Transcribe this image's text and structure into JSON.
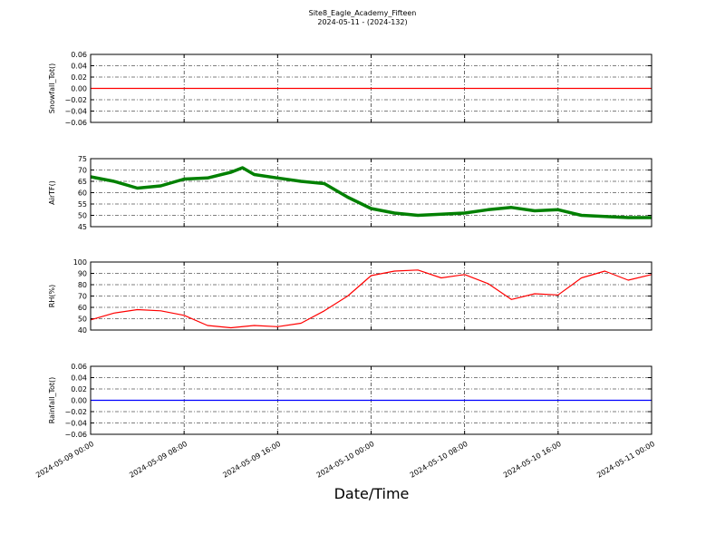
{
  "chart_data": [
    {
      "type": "line",
      "title": "Site8_Eagle_Academy_Fifteen",
      "subtitle": "2024-05-11 - (2024-132)",
      "y_label": "Snowfall_Tot()",
      "x": [
        "2024-05-09 00:00",
        "2024-05-11 00:00"
      ],
      "values": [
        0,
        0
      ],
      "color": "#ff0000",
      "xlim": [
        "2024-05-09 00:00",
        "2024-05-11 00:00"
      ],
      "ylim": [
        -0.06,
        0.06
      ],
      "yticks": [
        {
          "value": -0.06,
          "label": "−0.06"
        },
        {
          "value": -0.04,
          "label": "−0.04"
        },
        {
          "value": -0.02,
          "label": "−0.02"
        },
        {
          "value": 0,
          "label": "0.00"
        },
        {
          "value": 0.02,
          "label": "0.02"
        },
        {
          "value": 0.04,
          "label": "0.04"
        },
        {
          "value": 0.06,
          "label": "0.06"
        }
      ],
      "grid": true
    },
    {
      "type": "line",
      "y_label": "AirTF()",
      "x": [
        "2024-05-09 00:00",
        "2024-05-09 02:00",
        "2024-05-09 04:00",
        "2024-05-09 06:00",
        "2024-05-09 08:00",
        "2024-05-09 10:00",
        "2024-05-09 12:00",
        "2024-05-09 13:00",
        "2024-05-09 14:00",
        "2024-05-09 16:00",
        "2024-05-09 18:00",
        "2024-05-09 20:00",
        "2024-05-09 22:00",
        "2024-05-10 00:00",
        "2024-05-10 02:00",
        "2024-05-10 04:00",
        "2024-05-10 06:00",
        "2024-05-10 08:00",
        "2024-05-10 10:00",
        "2024-05-10 12:00",
        "2024-05-10 14:00",
        "2024-05-10 16:00",
        "2024-05-10 18:00",
        "2024-05-10 20:00",
        "2024-05-10 22:00",
        "2024-05-11 00:00"
      ],
      "values": [
        67,
        65,
        62,
        63,
        66,
        66.5,
        69,
        71,
        68,
        66.5,
        65,
        64,
        58,
        53,
        51,
        50,
        50.5,
        51,
        52.5,
        53.5,
        52,
        52.5,
        50,
        49.5,
        49,
        49
      ],
      "color": "#008000",
      "xlim": [
        "2024-05-09 00:00",
        "2024-05-11 00:00"
      ],
      "ylim": [
        45,
        75
      ],
      "yticks": [
        45,
        50,
        55,
        60,
        65,
        70,
        75
      ],
      "grid": true
    },
    {
      "type": "line",
      "y_label": "RH(%)",
      "x": [
        "2024-05-09 00:00",
        "2024-05-09 02:00",
        "2024-05-09 04:00",
        "2024-05-09 06:00",
        "2024-05-09 08:00",
        "2024-05-09 10:00",
        "2024-05-09 12:00",
        "2024-05-09 14:00",
        "2024-05-09 16:00",
        "2024-05-09 18:00",
        "2024-05-09 20:00",
        "2024-05-09 22:00",
        "2024-05-10 00:00",
        "2024-05-10 02:00",
        "2024-05-10 04:00",
        "2024-05-10 06:00",
        "2024-05-10 08:00",
        "2024-05-10 10:00",
        "2024-05-10 12:00",
        "2024-05-10 14:00",
        "2024-05-10 16:00",
        "2024-05-10 18:00",
        "2024-05-10 20:00",
        "2024-05-10 22:00",
        "2024-05-11 00:00"
      ],
      "values": [
        49,
        55,
        58,
        57,
        53,
        44,
        42,
        44,
        43,
        46,
        57,
        70,
        88,
        92,
        93,
        86,
        89,
        81,
        67,
        72,
        71,
        86,
        92,
        84,
        89
      ],
      "color": "#ff0000",
      "xlim": [
        "2024-05-09 00:00",
        "2024-05-11 00:00"
      ],
      "ylim": [
        40,
        100
      ],
      "yticks": [
        40,
        50,
        60,
        70,
        80,
        90,
        100
      ],
      "grid": true
    },
    {
      "type": "line",
      "y_label": "Rainfall_Tot()",
      "x_label": "Date/Time",
      "x": [
        "2024-05-09 00:00",
        "2024-05-11 00:00"
      ],
      "values": [
        0,
        0
      ],
      "color": "#0000ff",
      "xlim": [
        "2024-05-09 00:00",
        "2024-05-11 00:00"
      ],
      "ylim": [
        -0.06,
        0.06
      ],
      "yticks": [
        {
          "value": -0.06,
          "label": "−0.06"
        },
        {
          "value": -0.04,
          "label": "−0.04"
        },
        {
          "value": -0.02,
          "label": "−0.02"
        },
        {
          "value": 0,
          "label": "0.00"
        },
        {
          "value": 0.02,
          "label": "0.02"
        },
        {
          "value": 0.04,
          "label": "0.04"
        },
        {
          "value": 0.06,
          "label": "0.06"
        }
      ],
      "xticks": [
        "2024-05-09 00:00",
        "2024-05-09 08:00",
        "2024-05-09 16:00",
        "2024-05-10 00:00",
        "2024-05-10 08:00",
        "2024-05-10 16:00",
        "2024-05-11 00:00"
      ],
      "grid": true
    }
  ]
}
